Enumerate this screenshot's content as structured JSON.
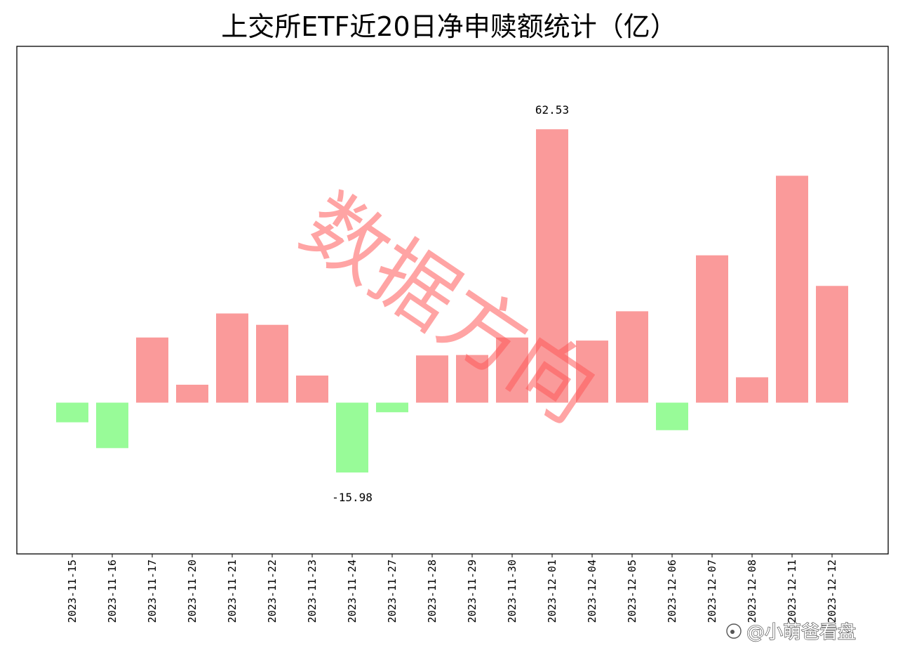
{
  "chart_data": {
    "type": "bar",
    "title": "上交所ETF近20日净申赎额统计（亿）",
    "categories": [
      "2023-11-15",
      "2023-11-16",
      "2023-11-17",
      "2023-11-20",
      "2023-11-21",
      "2023-11-22",
      "2023-11-23",
      "2023-11-24",
      "2023-11-27",
      "2023-11-28",
      "2023-11-29",
      "2023-11-30",
      "2023-12-01",
      "2023-12-04",
      "2023-12-05",
      "2023-12-06",
      "2023-12-07",
      "2023-12-08",
      "2023-12-11",
      "2023-12-12"
    ],
    "values": [
      -4.5,
      -10.4,
      14.9,
      4.1,
      20.4,
      17.8,
      6.2,
      -15.98,
      -2.2,
      10.8,
      10.9,
      14.9,
      62.53,
      14.2,
      20.9,
      -6.3,
      33.7,
      5.8,
      51.9,
      26.7
    ],
    "data_labels": [
      {
        "index": 7,
        "text": "-15.98"
      },
      {
        "index": 12,
        "text": "62.53"
      }
    ],
    "ylim": [
      -34.6,
      81.5
    ],
    "xlabel": "",
    "ylabel": "",
    "grid": false,
    "colors": {
      "positive": "#fa9a9a",
      "negative": "#98fb98",
      "frame": "#000000"
    }
  },
  "watermark": {
    "text": "数据方向",
    "color": "#ff5a5a"
  },
  "credit": {
    "text": "@小萌爸看盘"
  }
}
